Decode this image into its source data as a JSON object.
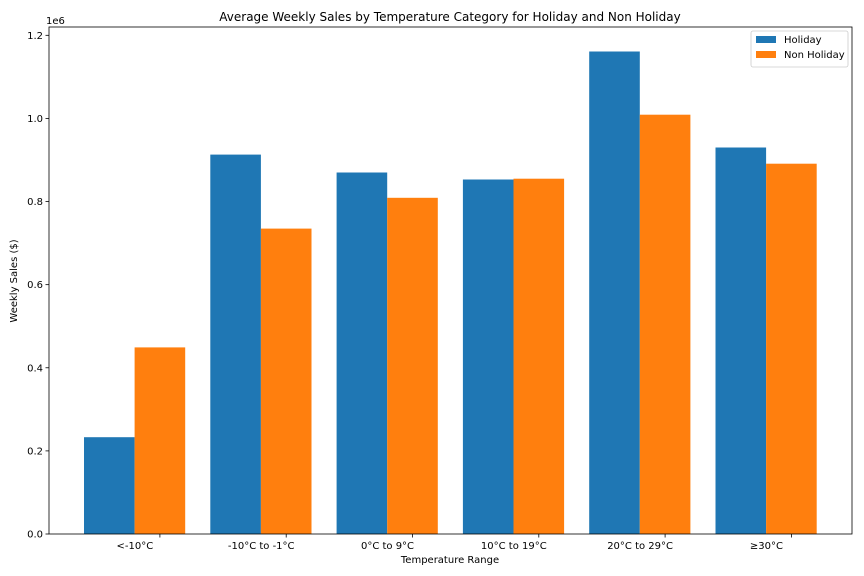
{
  "chart_data": {
    "type": "bar",
    "title": "Average Weekly Sales by Temperature Category for Holiday and Non Holiday",
    "xlabel": "Temperature Range",
    "ylabel": "Weekly Sales ($)",
    "y_offset_label": "1e6",
    "categories": [
      "<-10°C",
      "-10°C to -1°C",
      "0°C to 9°C",
      "10°C to 19°C",
      "20°C to 29°C",
      "≥30°C"
    ],
    "series": [
      {
        "name": "Holiday",
        "color": "#1f77b4",
        "values": [
          233000,
          913000,
          870000,
          853000,
          1161000,
          930000
        ]
      },
      {
        "name": "Non Holiday",
        "color": "#ff7f0e",
        "values": [
          449000,
          735000,
          809000,
          855000,
          1009000,
          891000
        ]
      }
    ],
    "ylim": [
      0,
      1220000
    ],
    "yticks": [
      0,
      200000,
      400000,
      600000,
      800000,
      1000000,
      1200000
    ],
    "ytick_labels": [
      "0.0",
      "0.2",
      "0.4",
      "0.6",
      "0.8",
      "1.0",
      "1.2"
    ],
    "legend_position": "top-right",
    "grid": false
  }
}
